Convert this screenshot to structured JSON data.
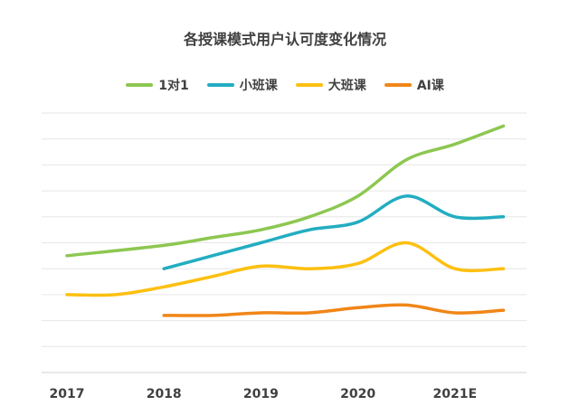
{
  "chart_data": {
    "type": "line",
    "title": "各授课模式用户认可度变化情况",
    "categories": [
      "2017",
      "2018",
      "2019",
      "2020",
      "2021E"
    ],
    "xlabel": "",
    "ylabel": "",
    "ylim": [
      0,
      10
    ],
    "grid": true,
    "legend_position": "top",
    "series": [
      {
        "name": "1对1",
        "color": "#8DC751",
        "x": [
          2017,
          2018,
          2018.5,
          2019,
          2019.5,
          2020,
          2020.5,
          2021,
          2021.5
        ],
        "y": [
          4.5,
          4.9,
          5.2,
          5.5,
          6.0,
          6.8,
          8.2,
          8.8,
          9.5
        ]
      },
      {
        "name": "小班课",
        "color": "#23ADC1",
        "x": [
          2018,
          2018.5,
          2019,
          2019.5,
          2020,
          2020.5,
          2021,
          2021.5
        ],
        "y": [
          4.0,
          4.5,
          5.0,
          5.5,
          5.8,
          6.8,
          6.0,
          6.0
        ]
      },
      {
        "name": "大班课",
        "color": "#FDC011",
        "x": [
          2017,
          2017.5,
          2018,
          2018.5,
          2019,
          2019.5,
          2020,
          2020.5,
          2021,
          2021.5
        ],
        "y": [
          3.0,
          3.0,
          3.3,
          3.7,
          4.1,
          4.0,
          4.2,
          5.0,
          4.0,
          4.0
        ]
      },
      {
        "name": "AI课",
        "color": "#F08618",
        "x": [
          2018,
          2018.5,
          2019,
          2019.5,
          2020,
          2020.5,
          2021,
          2021.5
        ],
        "y": [
          2.2,
          2.2,
          2.3,
          2.3,
          2.5,
          2.6,
          2.3,
          2.4
        ]
      }
    ]
  }
}
